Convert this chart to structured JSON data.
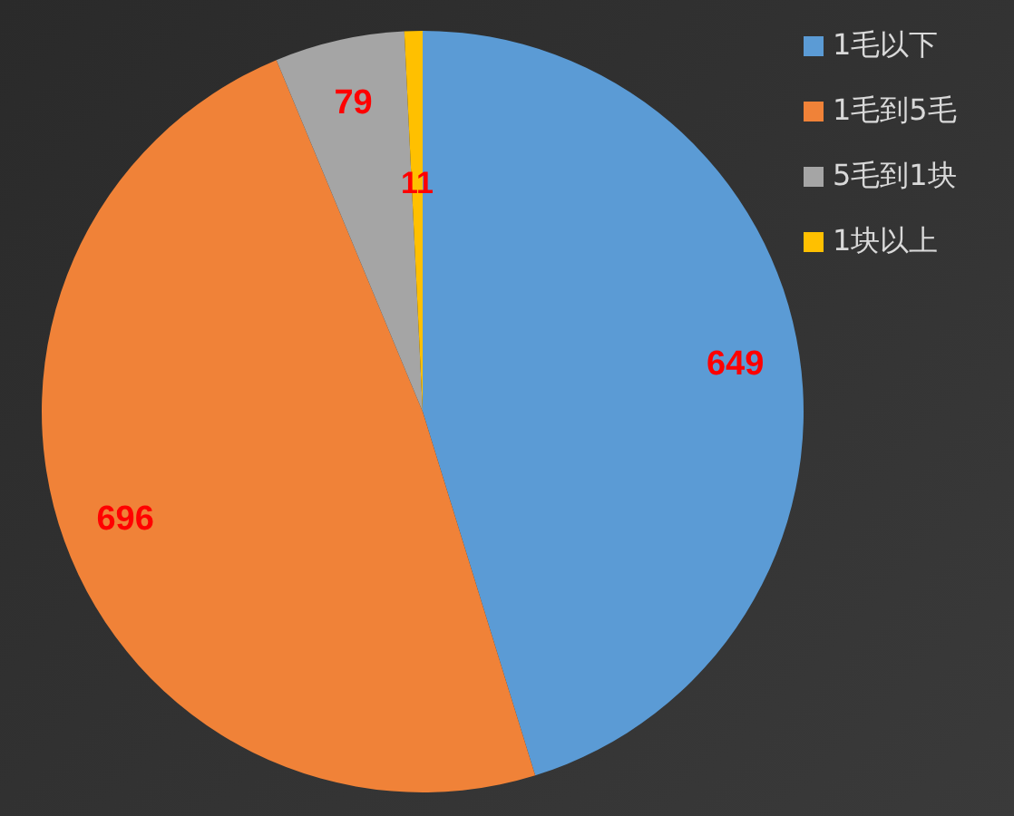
{
  "chart_data": {
    "type": "pie",
    "categories": [
      "1毛以下",
      "1毛到5毛",
      "5毛到1块",
      "1块以上"
    ],
    "values": [
      649,
      696,
      79,
      11
    ],
    "colors": [
      "#5b9bd5",
      "#f08238",
      "#a5a5a5",
      "#ffc000"
    ],
    "data_labels": true,
    "legend": "top right"
  }
}
